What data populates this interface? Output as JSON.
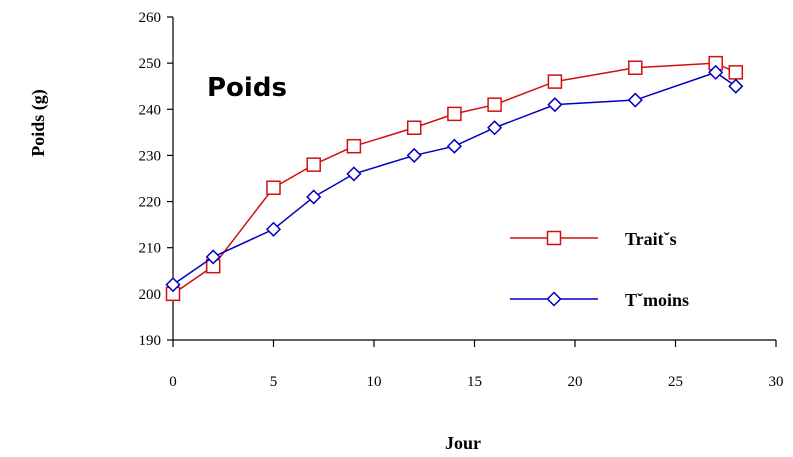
{
  "chart_data": {
    "type": "line",
    "title": "Poids",
    "xlabel": "Jour",
    "ylabel": "Poids (g)",
    "xlim": [
      0,
      30
    ],
    "ylim": [
      190,
      260
    ],
    "x_ticks": [
      0,
      5,
      10,
      15,
      20,
      25,
      30
    ],
    "y_ticks": [
      190,
      200,
      210,
      220,
      230,
      240,
      250,
      260
    ],
    "grid": false,
    "legend_position": "right",
    "series": [
      {
        "name": "Traitˇs",
        "color": "#d01010",
        "marker": "square",
        "x": [
          0,
          2,
          5,
          7,
          9,
          12,
          14,
          16,
          19,
          23,
          27,
          28
        ],
        "y": [
          200,
          206,
          223,
          228,
          232,
          236,
          239,
          241,
          246,
          249,
          250,
          248
        ]
      },
      {
        "name": "Tˇmoins",
        "color": "#0000c0",
        "marker": "diamond",
        "x": [
          0,
          2,
          5,
          7,
          9,
          12,
          14,
          16,
          19,
          23,
          27,
          28
        ],
        "y": [
          202,
          208,
          214,
          221,
          226,
          230,
          232,
          236,
          241,
          242,
          248,
          245
        ]
      }
    ]
  }
}
